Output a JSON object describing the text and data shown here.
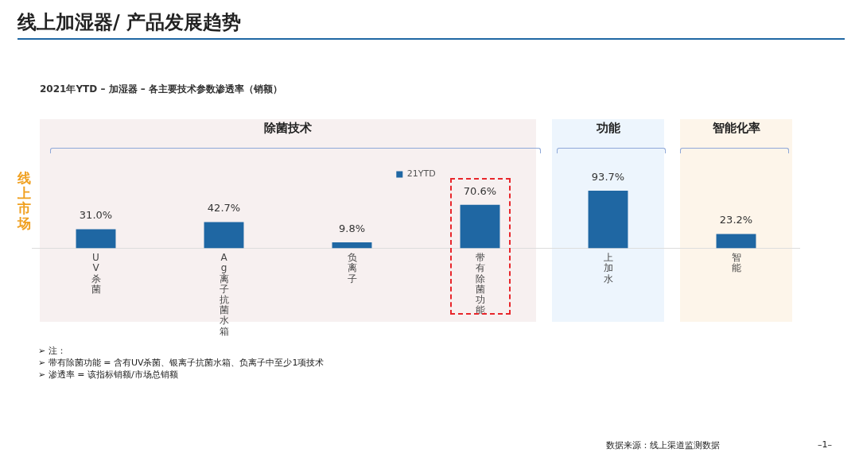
{
  "chart_data": {
    "type": "bar",
    "title": "线上加湿器/ 产品发展趋势",
    "subtitle": "2021年YTD – 加湿器 – 各主要技术参数渗透率（销额）",
    "ylabel": "线上市场",
    "categories": [
      "UV杀菌",
      "Ag离子抗菌水箱",
      "负离子",
      "带有除菌功能",
      "上加水",
      "智能"
    ],
    "series": [
      {
        "name": "21YTD",
        "color": "#1f67a3",
        "values": [
          31.0,
          42.7,
          9.8,
          70.6,
          93.7,
          23.2
        ],
        "value_labels": [
          "31.0%",
          "42.7%",
          "9.8%",
          "70.6%",
          "93.7%",
          "23.2%"
        ]
      }
    ],
    "legend": "top",
    "grid": false,
    "tick_labels": "x",
    "bands": [
      {
        "axis": "x",
        "from": "UV杀菌",
        "to": "带有除菌功能",
        "label": "除菌技术",
        "color": "#f7f0f0"
      },
      {
        "axis": "x",
        "from": "上加水",
        "to": "上加水",
        "label": "功能",
        "color": "#edf5fd"
      },
      {
        "axis": "x",
        "from": "智能",
        "to": "智能",
        "label": "智能化率",
        "color": "#fdf5ea"
      }
    ],
    "annotations": [
      "➢ 注：",
      "➢ 带有除菌功能 = 含有UV杀菌、银离子抗菌水箱、负离子中至少1项技术",
      "➢ 渗透率 = 该指标销额/市场总销额",
      "数据来源：线上渠道监测数据",
      "–1–"
    ]
  }
}
